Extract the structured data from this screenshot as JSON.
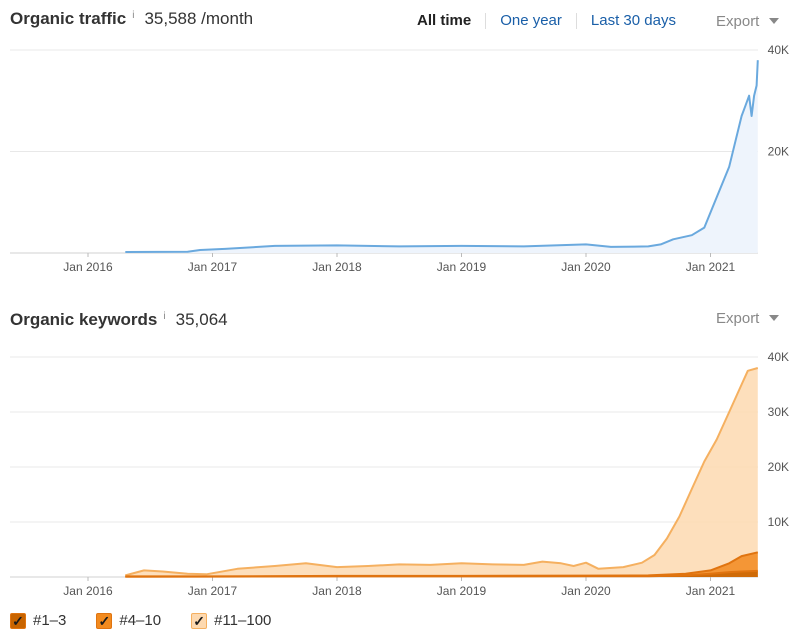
{
  "traffic": {
    "title": "Organic traffic",
    "info": "i",
    "value": "35,588 /month"
  },
  "range": {
    "all_time": "All time",
    "one_year": "One year",
    "last_30_days": "Last 30 days"
  },
  "export_label": "Export",
  "keywords": {
    "title": "Organic keywords",
    "info": "i",
    "value": "35,064"
  },
  "legend": [
    {
      "label": "#1–3",
      "color": "#e07410",
      "fill": "#c86400"
    },
    {
      "label": "#4–10",
      "color": "#e07410",
      "fill": "#f28a1e"
    },
    {
      "label": "#11–100",
      "color": "#f5b060",
      "fill": "#fdd9b0"
    }
  ],
  "chart_data": [
    {
      "type": "area",
      "title": "Organic traffic",
      "x_ticks": [
        "Jan 2016",
        "Jan 2017",
        "Jan 2018",
        "Jan 2019",
        "Jan 2020",
        "Jan 2021"
      ],
      "y_ticks": [
        "20K",
        "40K"
      ],
      "ylim": [
        0,
        40000
      ],
      "grid": true,
      "series": [
        {
          "color": "#6aa9de",
          "fill": "#eef4fc",
          "x": [
            2016.3,
            2016.8,
            2016.9,
            2017.1,
            2017.5,
            2018.0,
            2018.5,
            2019.0,
            2019.5,
            2020.0,
            2020.2,
            2020.5,
            2020.6,
            2020.7,
            2020.85,
            2020.95,
            2021.05,
            2021.15,
            2021.2,
            2021.25,
            2021.28,
            2021.31,
            2021.33,
            2021.35,
            2021.37,
            2021.38
          ],
          "y": [
            200,
            250,
            600,
            800,
            1400,
            1500,
            1300,
            1400,
            1300,
            1700,
            1200,
            1300,
            1700,
            2700,
            3500,
            5000,
            11000,
            17000,
            22000,
            27000,
            29000,
            31000,
            27000,
            31000,
            33000,
            38000
          ]
        }
      ]
    },
    {
      "type": "area",
      "title": "Organic keywords",
      "x_ticks": [
        "Jan 2016",
        "Jan 2017",
        "Jan 2018",
        "Jan 2019",
        "Jan 2020",
        "Jan 2021"
      ],
      "y_ticks": [
        "10K",
        "20K",
        "30K",
        "40K"
      ],
      "ylim": [
        0,
        40000
      ],
      "grid": true,
      "series": [
        {
          "name": "#11–100",
          "color": "#f5b060",
          "fill": "#fdd9b0",
          "x": [
            2016.3,
            2016.45,
            2016.6,
            2016.8,
            2016.95,
            2017.2,
            2017.5,
            2017.75,
            2018.0,
            2018.25,
            2018.5,
            2018.75,
            2019.0,
            2019.25,
            2019.5,
            2019.65,
            2019.8,
            2019.9,
            2020.0,
            2020.1,
            2020.3,
            2020.45,
            2020.55,
            2020.65,
            2020.75,
            2020.85,
            2020.95,
            2021.05,
            2021.15,
            2021.25,
            2021.3,
            2021.38
          ],
          "y": [
            300,
            1200,
            1000,
            600,
            500,
            1500,
            2000,
            2500,
            1800,
            2000,
            2300,
            2200,
            2500,
            2300,
            2200,
            2800,
            2500,
            2000,
            2600,
            1500,
            1800,
            2600,
            4000,
            7000,
            11000,
            16000,
            21000,
            25000,
            30000,
            35000,
            37500,
            38000
          ]
        },
        {
          "name": "#4–10",
          "color": "#e07410",
          "fill": "#f28a1e",
          "x": [
            2016.3,
            2017.0,
            2018.0,
            2019.0,
            2020.0,
            2020.5,
            2020.8,
            2021.0,
            2021.15,
            2021.25,
            2021.38
          ],
          "y": [
            100,
            100,
            200,
            200,
            250,
            300,
            600,
            1200,
            2500,
            3800,
            4500
          ]
        },
        {
          "name": "#1–3",
          "color": "#e07410",
          "fill": "#c86400",
          "x": [
            2016.3,
            2017.0,
            2018.0,
            2019.0,
            2020.0,
            2020.5,
            2020.8,
            2021.0,
            2021.15,
            2021.25,
            2021.38
          ],
          "y": [
            50,
            80,
            100,
            100,
            120,
            150,
            300,
            600,
            900,
            1000,
            1100
          ]
        }
      ]
    }
  ]
}
